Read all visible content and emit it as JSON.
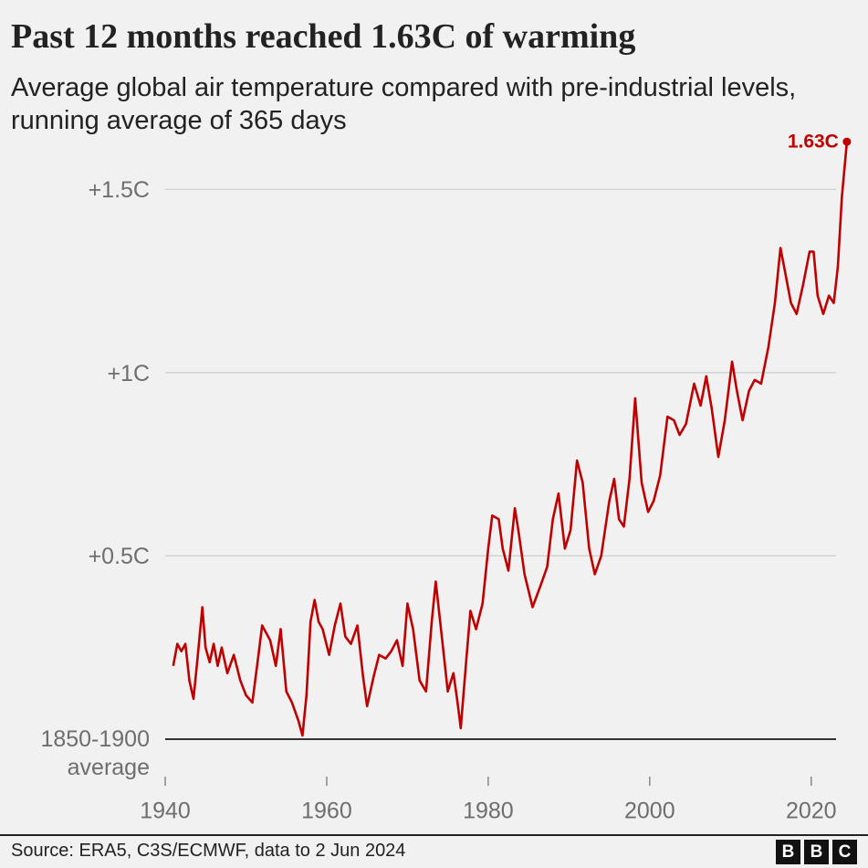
{
  "chart_data": {
    "type": "line",
    "title": "Past 12 months reached 1.63C of warming",
    "subtitle": "Average global air temperature compared with pre-industrial levels, running average of 365 days",
    "x": [
      1941.0,
      1941.5,
      1942,
      1942.5,
      1943,
      1943.5,
      1944,
      1944.6,
      1945,
      1945.5,
      1946,
      1946.5,
      1947,
      1947.7,
      1948.5,
      1949.3,
      1950,
      1950.8,
      1951.5,
      1952,
      1953,
      1953.7,
      1954.3,
      1955,
      1955.7,
      1956.5,
      1957,
      1957.5,
      1958,
      1958.5,
      1959,
      1959.5,
      1960.3,
      1961,
      1961.7,
      1962.3,
      1963,
      1963.8,
      1964.5,
      1965,
      1965.8,
      1966.5,
      1967.3,
      1968,
      1968.7,
      1969.4,
      1970,
      1970.7,
      1971.5,
      1972.3,
      1973,
      1973.5,
      1974.3,
      1975,
      1975.7,
      1976.2,
      1976.6,
      1977.3,
      1977.8,
      1978.5,
      1979.3,
      1980,
      1980.5,
      1981.3,
      1981.8,
      1982.5,
      1983.3,
      1983.8,
      1984.5,
      1985.5,
      1986.5,
      1987.3,
      1988,
      1988.7,
      1989.5,
      1990.2,
      1991,
      1991.7,
      1992.5,
      1993.2,
      1994,
      1995,
      1995.6,
      1996.2,
      1996.8,
      1997.5,
      1998.2,
      1999,
      1999.8,
      2000.5,
      2001.3,
      2002.2,
      2003,
      2003.7,
      2004.5,
      2005.5,
      2006.3,
      2007,
      2007.7,
      2008.5,
      2009.3,
      2010.2,
      2010.8,
      2011.5,
      2012.3,
      2013,
      2013.8,
      2014.7,
      2015.5,
      2016.2,
      2016.8,
      2017.5,
      2018.2,
      2019,
      2019.8,
      2020.3,
      2020.8,
      2021.5,
      2022.2,
      2022.8,
      2023.3,
      2023.8,
      2024.42
    ],
    "series": [
      {
        "name": "Temperature anomaly",
        "color": "#c00000",
        "values": [
          0.2,
          0.26,
          0.24,
          0.26,
          0.16,
          0.11,
          0.22,
          0.36,
          0.25,
          0.21,
          0.26,
          0.2,
          0.25,
          0.18,
          0.23,
          0.16,
          0.12,
          0.1,
          0.22,
          0.31,
          0.27,
          0.2,
          0.3,
          0.13,
          0.1,
          0.05,
          0.01,
          0.12,
          0.32,
          0.38,
          0.32,
          0.3,
          0.23,
          0.31,
          0.37,
          0.28,
          0.26,
          0.31,
          0.17,
          0.09,
          0.17,
          0.23,
          0.22,
          0.24,
          0.27,
          0.2,
          0.37,
          0.3,
          0.16,
          0.13,
          0.32,
          0.43,
          0.27,
          0.13,
          0.18,
          0.1,
          0.03,
          0.22,
          0.35,
          0.3,
          0.37,
          0.52,
          0.61,
          0.6,
          0.52,
          0.46,
          0.63,
          0.56,
          0.45,
          0.36,
          0.42,
          0.47,
          0.6,
          0.67,
          0.52,
          0.57,
          0.76,
          0.7,
          0.52,
          0.45,
          0.5,
          0.65,
          0.71,
          0.6,
          0.58,
          0.71,
          0.93,
          0.7,
          0.62,
          0.65,
          0.72,
          0.88,
          0.87,
          0.83,
          0.86,
          0.97,
          0.91,
          0.99,
          0.9,
          0.77,
          0.87,
          1.03,
          0.95,
          0.87,
          0.95,
          0.98,
          0.97,
          1.07,
          1.19,
          1.34,
          1.27,
          1.19,
          1.16,
          1.24,
          1.33,
          1.33,
          1.21,
          1.16,
          1.21,
          1.19,
          1.29,
          1.48,
          1.63
        ]
      }
    ],
    "annotations": [
      {
        "label": "1.63C",
        "x": 2024.42,
        "y": 1.63
      }
    ],
    "xlim": [
      1940,
      2025
    ],
    "xticks": [
      1940,
      1960,
      1980,
      2000,
      2020
    ],
    "ylim": [
      0,
      1.7
    ],
    "yticks": [
      {
        "value": 0,
        "label": "1850-1900 average"
      },
      {
        "value": 0.5,
        "label": "+0.5C"
      },
      {
        "value": 1,
        "label": "+1C"
      },
      {
        "value": 1.5,
        "label": "+1.5C"
      }
    ],
    "grid": true
  },
  "footer": {
    "source": "Source: ERA5, C3S/ECMWF, data to  2 Jun 2024",
    "logo": [
      "B",
      "B",
      "C"
    ]
  }
}
